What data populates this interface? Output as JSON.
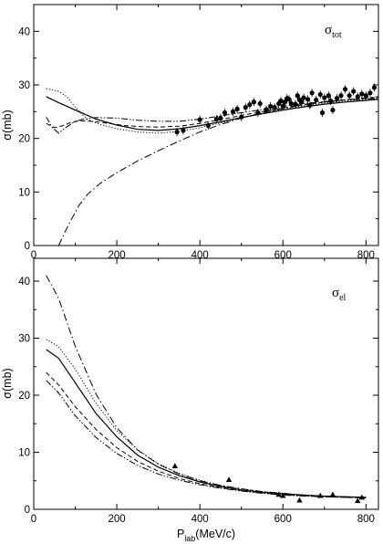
{
  "chart_data": [
    {
      "type": "scatter",
      "panel_label": "σ",
      "panel_label_sub": "tot",
      "ylabel": "σ(mb)",
      "xlabel": "",
      "xlim": [
        0,
        830
      ],
      "ylim": [
        0,
        45
      ],
      "xticks": [
        0,
        200,
        400,
        600,
        800
      ],
      "yticks": [
        0,
        10,
        20,
        30,
        40
      ],
      "grid": false,
      "experiment": {
        "marker": "circle",
        "x": [
          345,
          360,
          400,
          420,
          440,
          450,
          460,
          480,
          490,
          500,
          510,
          520,
          530,
          540,
          545,
          560,
          570,
          580,
          590,
          595,
          600,
          605,
          610,
          615,
          620,
          630,
          635,
          640,
          645,
          650,
          660,
          665,
          670,
          680,
          690,
          695,
          700,
          710,
          715,
          720,
          730,
          740,
          750,
          760,
          770,
          780,
          790,
          800,
          810,
          820
        ],
        "y": [
          21.2,
          21.5,
          23.5,
          22.4,
          23.6,
          23.8,
          24.8,
          25.0,
          25.5,
          24.0,
          25.8,
          26.3,
          26.8,
          24.8,
          26.5,
          25.4,
          26.0,
          25.8,
          26.5,
          27.0,
          26.0,
          26.8,
          27.5,
          27.3,
          26.5,
          26.4,
          28.0,
          27.2,
          26.8,
          27.6,
          27.3,
          26.2,
          28.5,
          27.2,
          28.2,
          24.8,
          27.6,
          28.0,
          27.0,
          25.3,
          27.5,
          28.0,
          29.2,
          28.0,
          28.8,
          27.8,
          28.3,
          28.0,
          28.5,
          29.5
        ]
      },
      "curves": [
        {
          "style": "solid",
          "x": [
            30,
            60,
            100,
            150,
            200,
            250,
            300,
            350,
            400,
            450,
            500,
            550,
            600,
            650,
            700,
            750,
            800,
            830
          ],
          "y": [
            27.8,
            26.7,
            25.3,
            23.6,
            22.5,
            21.7,
            21.5,
            21.8,
            22.4,
            23.1,
            23.9,
            24.6,
            25.3,
            25.9,
            26.4,
            26.8,
            27.1,
            27.3
          ]
        },
        {
          "style": "dotted",
          "x": [
            30,
            60,
            80,
            100,
            130,
            160,
            200,
            250,
            300,
            350,
            400,
            450,
            500,
            550,
            600,
            650,
            700,
            750,
            800,
            830
          ],
          "y": [
            29.3,
            28.8,
            27.8,
            25.8,
            23.5,
            22.6,
            21.8,
            21.2,
            21.0,
            21.3,
            22.0,
            22.9,
            23.8,
            24.7,
            25.5,
            26.1,
            26.6,
            27.0,
            27.3,
            27.4
          ]
        },
        {
          "style": "dashed",
          "x": [
            30,
            50,
            70,
            90,
            110,
            140,
            180,
            220,
            260,
            300,
            350,
            400,
            450,
            500,
            550,
            600,
            650,
            700,
            750,
            800,
            830
          ],
          "y": [
            22.8,
            22.0,
            22.4,
            23.0,
            23.3,
            23.2,
            22.8,
            22.4,
            22.2,
            22.1,
            22.3,
            22.8,
            23.5,
            24.3,
            25.0,
            25.7,
            26.3,
            26.8,
            27.2,
            27.5,
            27.7
          ]
        },
        {
          "style": "dash-dot-dot",
          "x": [
            30,
            45,
            60,
            80,
            100,
            120,
            150,
            200,
            250,
            300,
            350,
            400,
            450,
            500,
            550,
            600,
            650,
            700,
            750,
            800,
            830
          ],
          "y": [
            24.0,
            22.0,
            21.0,
            22.2,
            23.2,
            23.6,
            23.9,
            23.8,
            23.4,
            23.2,
            23.2,
            23.6,
            24.2,
            24.8,
            25.4,
            26.0,
            26.5,
            26.9,
            27.2,
            27.4,
            27.5
          ]
        },
        {
          "style": "dash-dot",
          "x": [
            60,
            75,
            90,
            110,
            130,
            160,
            200,
            250,
            300,
            350,
            400,
            450,
            500,
            550,
            600,
            650,
            700,
            750,
            800,
            830
          ],
          "y": [
            0.0,
            2.5,
            4.8,
            7.6,
            9.6,
            11.6,
            13.6,
            15.8,
            17.7,
            19.5,
            21.2,
            22.6,
            23.8,
            24.8,
            25.6,
            26.3,
            26.8,
            27.2,
            27.6,
            27.8
          ]
        }
      ]
    },
    {
      "type": "scatter",
      "panel_label": "σ",
      "panel_label_sub": "el",
      "ylabel": "σ(mb)",
      "xlabel": "P",
      "xlabel_sub": "lab",
      "xlabel_unit": "(MeV/c)",
      "xlim": [
        0,
        830
      ],
      "ylim": [
        0,
        44
      ],
      "xticks": [
        0,
        200,
        400,
        600,
        800
      ],
      "yticks": [
        0,
        10,
        20,
        30,
        40
      ],
      "grid": false,
      "experiment": {
        "marker": "triangle",
        "x": [
          340,
          470,
          590,
          600,
          640,
          690,
          720,
          780,
          790
        ],
        "y": [
          7.6,
          5.2,
          2.6,
          2.4,
          1.6,
          2.4,
          2.6,
          1.5,
          2.1
        ]
      },
      "curves": [
        {
          "style": "solid",
          "x": [
            30,
            60,
            100,
            150,
            200,
            250,
            300,
            350,
            400,
            450,
            500,
            550,
            600,
            650,
            700,
            750,
            800
          ],
          "y": [
            28.0,
            26.5,
            22.2,
            16.8,
            12.7,
            9.5,
            7.4,
            5.9,
            4.8,
            4.0,
            3.4,
            3.0,
            2.7,
            2.5,
            2.3,
            2.2,
            2.1
          ]
        },
        {
          "style": "dotted",
          "x": [
            30,
            60,
            100,
            150,
            200,
            250,
            300,
            350,
            400,
            450,
            500,
            550,
            600,
            650,
            700,
            750,
            800
          ],
          "y": [
            29.8,
            28.5,
            24.6,
            18.6,
            13.8,
            10.4,
            8.0,
            6.3,
            5.1,
            4.2,
            3.6,
            3.1,
            2.8,
            2.5,
            2.3,
            2.2,
            2.1
          ]
        },
        {
          "style": "dashed",
          "x": [
            30,
            60,
            100,
            150,
            200,
            250,
            300,
            350,
            400,
            450,
            500,
            550,
            600,
            650,
            700,
            750,
            800
          ],
          "y": [
            24.0,
            21.8,
            18.0,
            14.0,
            10.8,
            8.4,
            6.7,
            5.4,
            4.5,
            3.8,
            3.3,
            2.9,
            2.6,
            2.4,
            2.2,
            2.1,
            2.0
          ]
        },
        {
          "style": "dash-dot-dot",
          "x": [
            30,
            60,
            100,
            150,
            200,
            250,
            300,
            350,
            400,
            450,
            500,
            550,
            600,
            650,
            700,
            750,
            800
          ],
          "y": [
            22.6,
            20.4,
            16.4,
            12.6,
            9.8,
            7.7,
            6.2,
            5.1,
            4.3,
            3.7,
            3.2,
            2.8,
            2.5,
            2.3,
            2.2,
            2.1,
            2.0
          ]
        },
        {
          "style": "dash-dot",
          "x": [
            30,
            60,
            100,
            150,
            200,
            250,
            300,
            350,
            400,
            450,
            500,
            550,
            600,
            650,
            700,
            750,
            800
          ],
          "y": [
            41.0,
            37.0,
            28.6,
            20.2,
            14.3,
            10.4,
            7.9,
            6.2,
            5.0,
            4.2,
            3.6,
            3.1,
            2.8,
            2.5,
            2.3,
            2.2,
            2.1
          ]
        }
      ]
    }
  ]
}
